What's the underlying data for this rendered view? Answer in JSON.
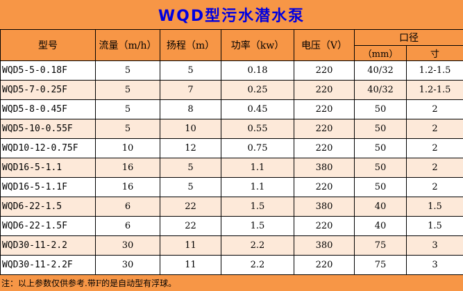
{
  "chart_data": {
    "type": "table",
    "title": "WQD型污水潜水泵",
    "headers": {
      "model": "型号",
      "flow": "流量（m/h）",
      "head": "扬程（m）",
      "power": "功率（kw）",
      "voltage": "电压（V）",
      "diameter_group": "口径",
      "diameter_mm": "（mm）",
      "diameter_inch": "寸"
    },
    "rows": [
      [
        "WQD5-5-0.18F",
        "5",
        "5",
        "0.18",
        "220",
        "40/32",
        "1.2-1.5"
      ],
      [
        "WQD5-7-0.25F",
        "5",
        "7",
        "0.25",
        "220",
        "40/32",
        "1.2-1.5"
      ],
      [
        "WQD5-8-0.45F",
        "5",
        "8",
        "0.45",
        "220",
        "50",
        "2"
      ],
      [
        "WQD5-10-0.55F",
        "5",
        "10",
        "0.55",
        "220",
        "50",
        "2"
      ],
      [
        "WQD10-12-0.75F",
        "10",
        "12",
        "0.75",
        "220",
        "50",
        "2"
      ],
      [
        "WQD16-5-1.1",
        "16",
        "5",
        "1.1",
        "380",
        "50",
        "2"
      ],
      [
        "WQD16-5-1.1F",
        "16",
        "5",
        "1.1",
        "220",
        "50",
        "2"
      ],
      [
        "WQD6-22-1.5",
        "6",
        "22",
        "1.5",
        "380",
        "40",
        "1.5"
      ],
      [
        "WQD6-22-1.5F",
        "6",
        "22",
        "1.5",
        "220",
        "40",
        "1.5"
      ],
      [
        "WQD30-11-2.2",
        "30",
        "11",
        "2.2",
        "380",
        "75",
        "3"
      ],
      [
        "WQD30-11-2.2F",
        "30",
        "11",
        "2.2",
        "220",
        "75",
        "3"
      ]
    ],
    "note": "注：以上参数仅供参考.带F的是自动型有浮球。"
  },
  "colors": {
    "header_bg": "#F79646",
    "row_bg": "#FFFFFF",
    "row_alt_bg": "#FDE9D9",
    "title_color": "#0000E0",
    "border": "#000000"
  }
}
